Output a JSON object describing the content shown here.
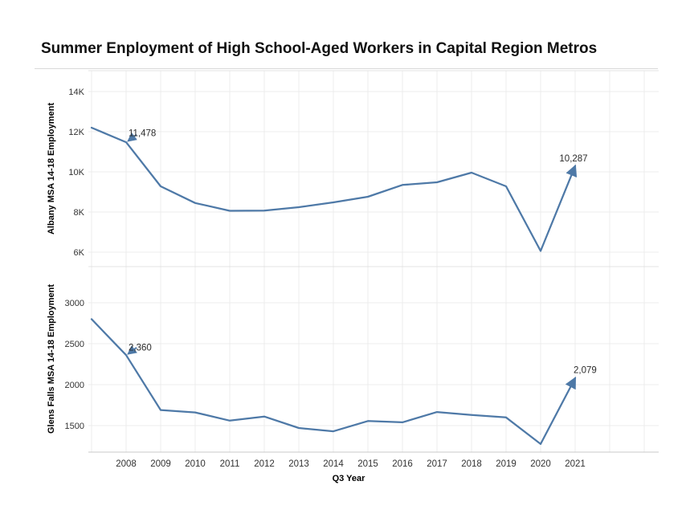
{
  "title": "Summer Enployment of High School-Aged Workers in Capital Region Metros",
  "x_axis": {
    "label": "Q3 Year",
    "tick_labels": [
      "2008",
      "2009",
      "2010",
      "2011",
      "2012",
      "2013",
      "2014",
      "2015",
      "2016",
      "2017",
      "2018",
      "2019",
      "2020",
      "2021"
    ],
    "tick_years": [
      2008,
      2009,
      2010,
      2011,
      2012,
      2013,
      2014,
      2015,
      2016,
      2017,
      2018,
      2019,
      2020,
      2021
    ]
  },
  "colors": {
    "line": "#4e79a7",
    "grid": "#ececec",
    "panel_border": "#e3e3e3",
    "axis_line": "#c9c9c9",
    "tick_text": "#333333",
    "annotation_text": "#2b2b2b",
    "title_text": "#111111"
  },
  "chart_data": [
    {
      "type": "line",
      "name": "Albany MSA",
      "ylabel": "Albany MSA 14-18 Employment",
      "x": [
        2007,
        2008,
        2009,
        2010,
        2011,
        2012,
        2013,
        2014,
        2015,
        2016,
        2017,
        2018,
        2019,
        2020,
        2021
      ],
      "values": [
        12200,
        11478,
        9280,
        8450,
        8060,
        8070,
        8240,
        8480,
        8760,
        9350,
        9480,
        9960,
        9280,
        6060,
        10287
      ],
      "ytick_labels": [
        "14K",
        "12K",
        "10K",
        "8K",
        "6K"
      ],
      "ytick_values": [
        14000,
        12000,
        10000,
        8000,
        6000
      ],
      "ylim": [
        5280,
        15040
      ],
      "grid": true,
      "legend": "none",
      "annotations": [
        {
          "year": 2008,
          "value": 11478,
          "label": "11,478"
        },
        {
          "year": 2021,
          "value": 10287,
          "label": "10,287"
        }
      ]
    },
    {
      "type": "line",
      "name": "Glens Falls MSA",
      "ylabel": "Glens Falls MSA 14-18 Employment",
      "x": [
        2007,
        2008,
        2009,
        2010,
        2011,
        2012,
        2013,
        2014,
        2015,
        2016,
        2017,
        2018,
        2019,
        2020,
        2021
      ],
      "values": [
        2800,
        2360,
        1690,
        1660,
        1560,
        1610,
        1470,
        1430,
        1555,
        1540,
        1665,
        1630,
        1600,
        1275,
        2079
      ],
      "ytick_labels": [
        "3000",
        "2500",
        "2000",
        "1500"
      ],
      "ytick_values": [
        3000,
        2500,
        2000,
        1500
      ],
      "ylim": [
        1176,
        3441
      ],
      "grid": true,
      "legend": "none",
      "annotations": [
        {
          "year": 2008,
          "value": 2360,
          "label": "2,360"
        },
        {
          "year": 2021,
          "value": 2079,
          "label": "2,079"
        }
      ]
    }
  ]
}
